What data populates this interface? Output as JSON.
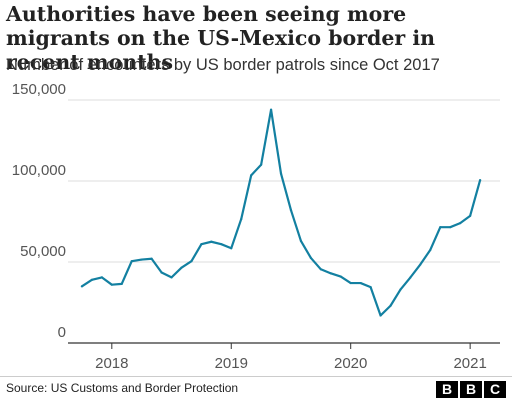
{
  "header": {
    "title": "Authorities have been seeing more migrants on the US-Mexico border in recent months",
    "subtitle": "Number of encounters by US border patrols since Oct 2017"
  },
  "footer": {
    "source": "Source: US Customs and Border Protection",
    "logo_letters": [
      "B",
      "B",
      "C"
    ]
  },
  "colors": {
    "line": "#1380a1",
    "grid": "#dddddd",
    "axis": "#333333"
  },
  "chart_data": {
    "type": "line",
    "title": "Authorities have been seeing more migrants on the US-Mexico border in recent months",
    "subtitle": "Number of encounters by US border patrols since Oct 2017",
    "xlabel": "",
    "ylabel": "",
    "grid": true,
    "ylim": [
      0,
      150000
    ],
    "xlim": [
      "2017-09-01",
      "2021-04-01"
    ],
    "y_ticks": [
      0,
      50000,
      100000,
      150000
    ],
    "y_tick_labels": [
      "0",
      "50,000",
      "100,000",
      "150,000"
    ],
    "x_ticks": [
      "2018-01",
      "2019-01",
      "2020-01",
      "2021-01"
    ],
    "x_tick_labels": [
      "2018",
      "2019",
      "2020",
      "2021"
    ],
    "series": [
      {
        "x": [
          "2017-10",
          "2017-11",
          "2017-12",
          "2018-01",
          "2018-02",
          "2018-03",
          "2018-04",
          "2018-05",
          "2018-06",
          "2018-07",
          "2018-08",
          "2018-09",
          "2018-10",
          "2018-11",
          "2018-12",
          "2019-01",
          "2019-02",
          "2019-03",
          "2019-04",
          "2019-05",
          "2019-06",
          "2019-07",
          "2019-08",
          "2019-09",
          "2019-10",
          "2019-11",
          "2019-12",
          "2020-01",
          "2020-02",
          "2020-03",
          "2020-04",
          "2020-05",
          "2020-06",
          "2020-07",
          "2020-08",
          "2020-09",
          "2020-10",
          "2020-11",
          "2020-12",
          "2021-01",
          "2021-02"
        ],
        "values": [
          35000,
          39000,
          40500,
          36000,
          36500,
          50500,
          51500,
          52000,
          43500,
          40500,
          46500,
          50500,
          61000,
          62500,
          61000,
          58500,
          76500,
          103500,
          110000,
          144000,
          104500,
          82000,
          63000,
          52500,
          45500,
          43000,
          41000,
          37000,
          37000,
          34500,
          17000,
          23000,
          33000,
          40500,
          48500,
          57500,
          71500,
          71500,
          74000,
          78500,
          100500
        ]
      }
    ]
  }
}
